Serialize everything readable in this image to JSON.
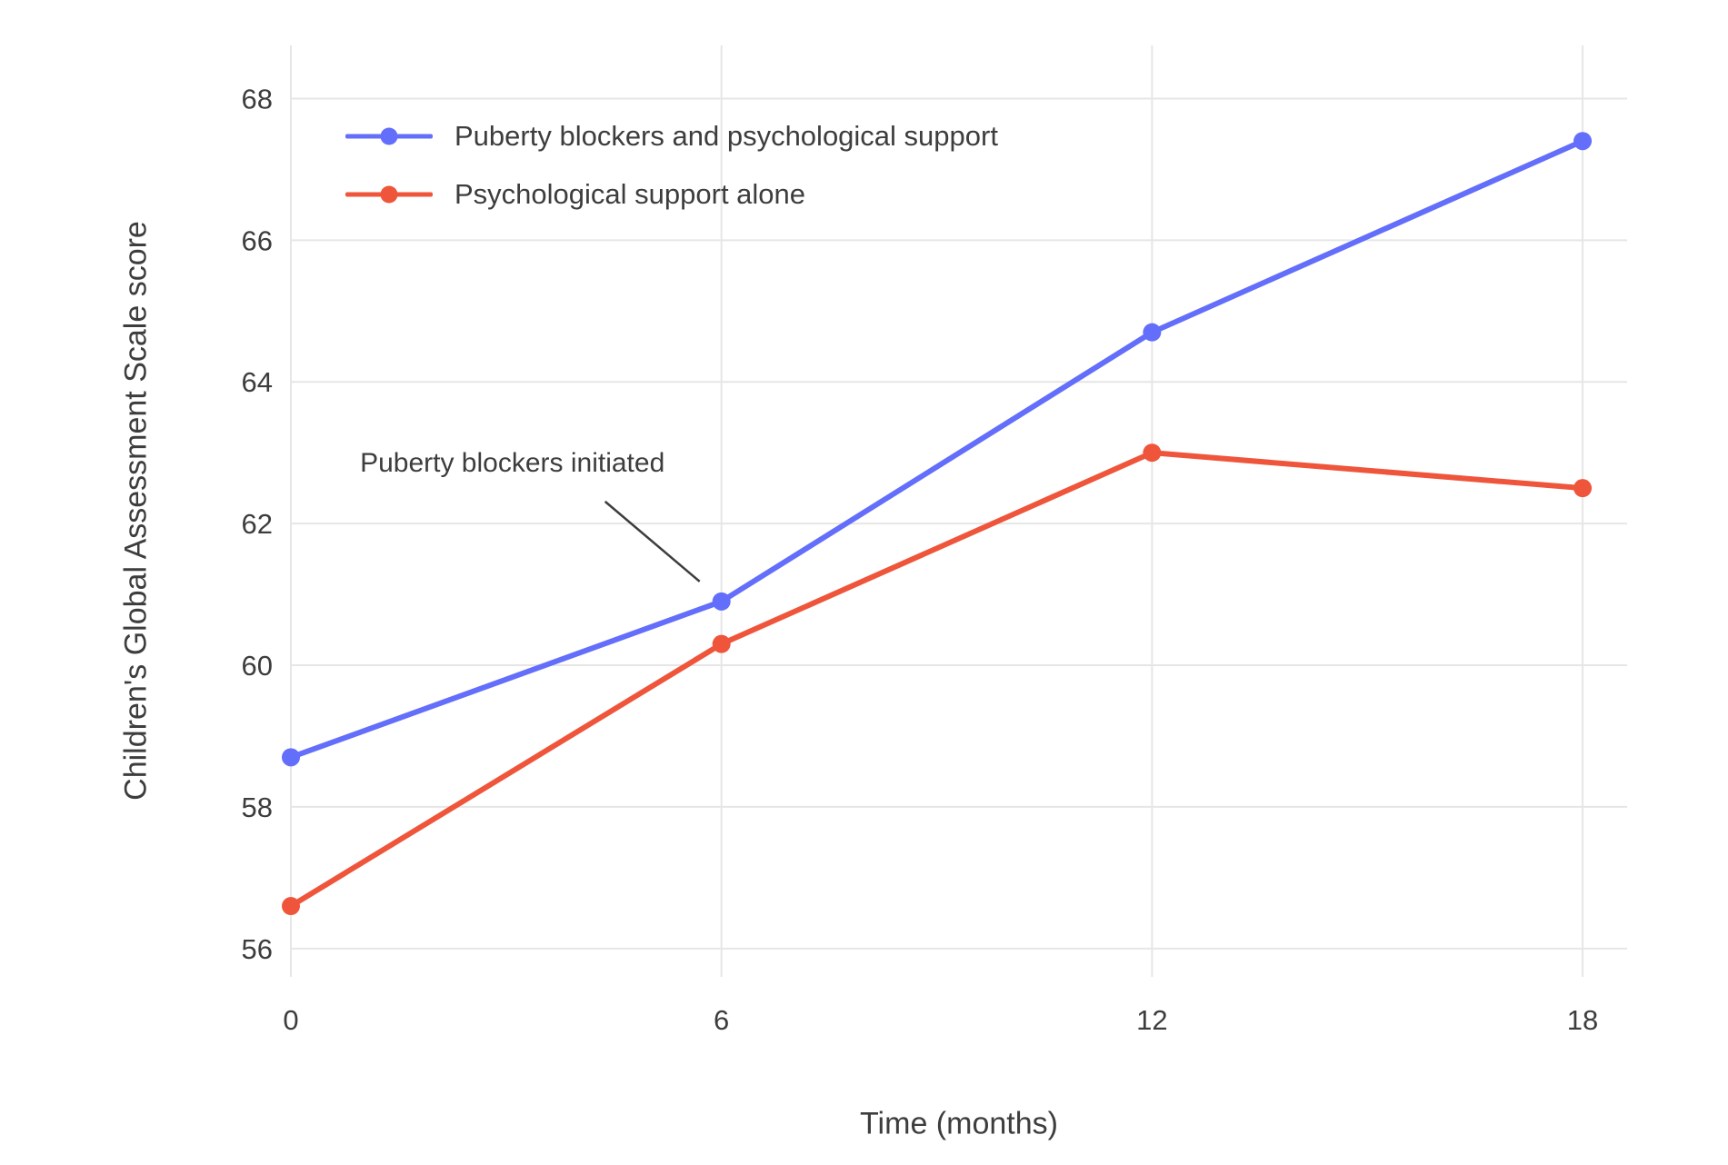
{
  "chart_data": {
    "type": "line",
    "title": "",
    "xlabel": "Time (months)",
    "ylabel": "Children's Global Assessment Scale score",
    "x": [
      0,
      6,
      12,
      18
    ],
    "x_ticks": [
      "0",
      "6",
      "12",
      "18"
    ],
    "y_ticks": [
      "56",
      "58",
      "60",
      "62",
      "64",
      "66",
      "68"
    ],
    "y_tick_values": [
      56,
      58,
      60,
      62,
      64,
      66,
      68
    ],
    "xlim": [
      0,
      18.62
    ],
    "ylim": [
      55.6,
      68.75
    ],
    "grid": true,
    "legend_position": "top-left-inside",
    "series": [
      {
        "name": "Puberty blockers and psychological support",
        "color": "#636EFA",
        "values": [
          58.7,
          60.9,
          64.7,
          67.4
        ]
      },
      {
        "name": "Psychological support alone",
        "color": "#EF553B",
        "values": [
          56.6,
          60.3,
          63.0,
          62.5
        ]
      }
    ],
    "annotation": {
      "text": "Puberty blockers initiated",
      "target_x": 6,
      "target_y": 60.9
    }
  },
  "colors": {
    "grid": "#E6E6E6",
    "text": "#3d3d3d",
    "background": "#FFFFFF"
  }
}
